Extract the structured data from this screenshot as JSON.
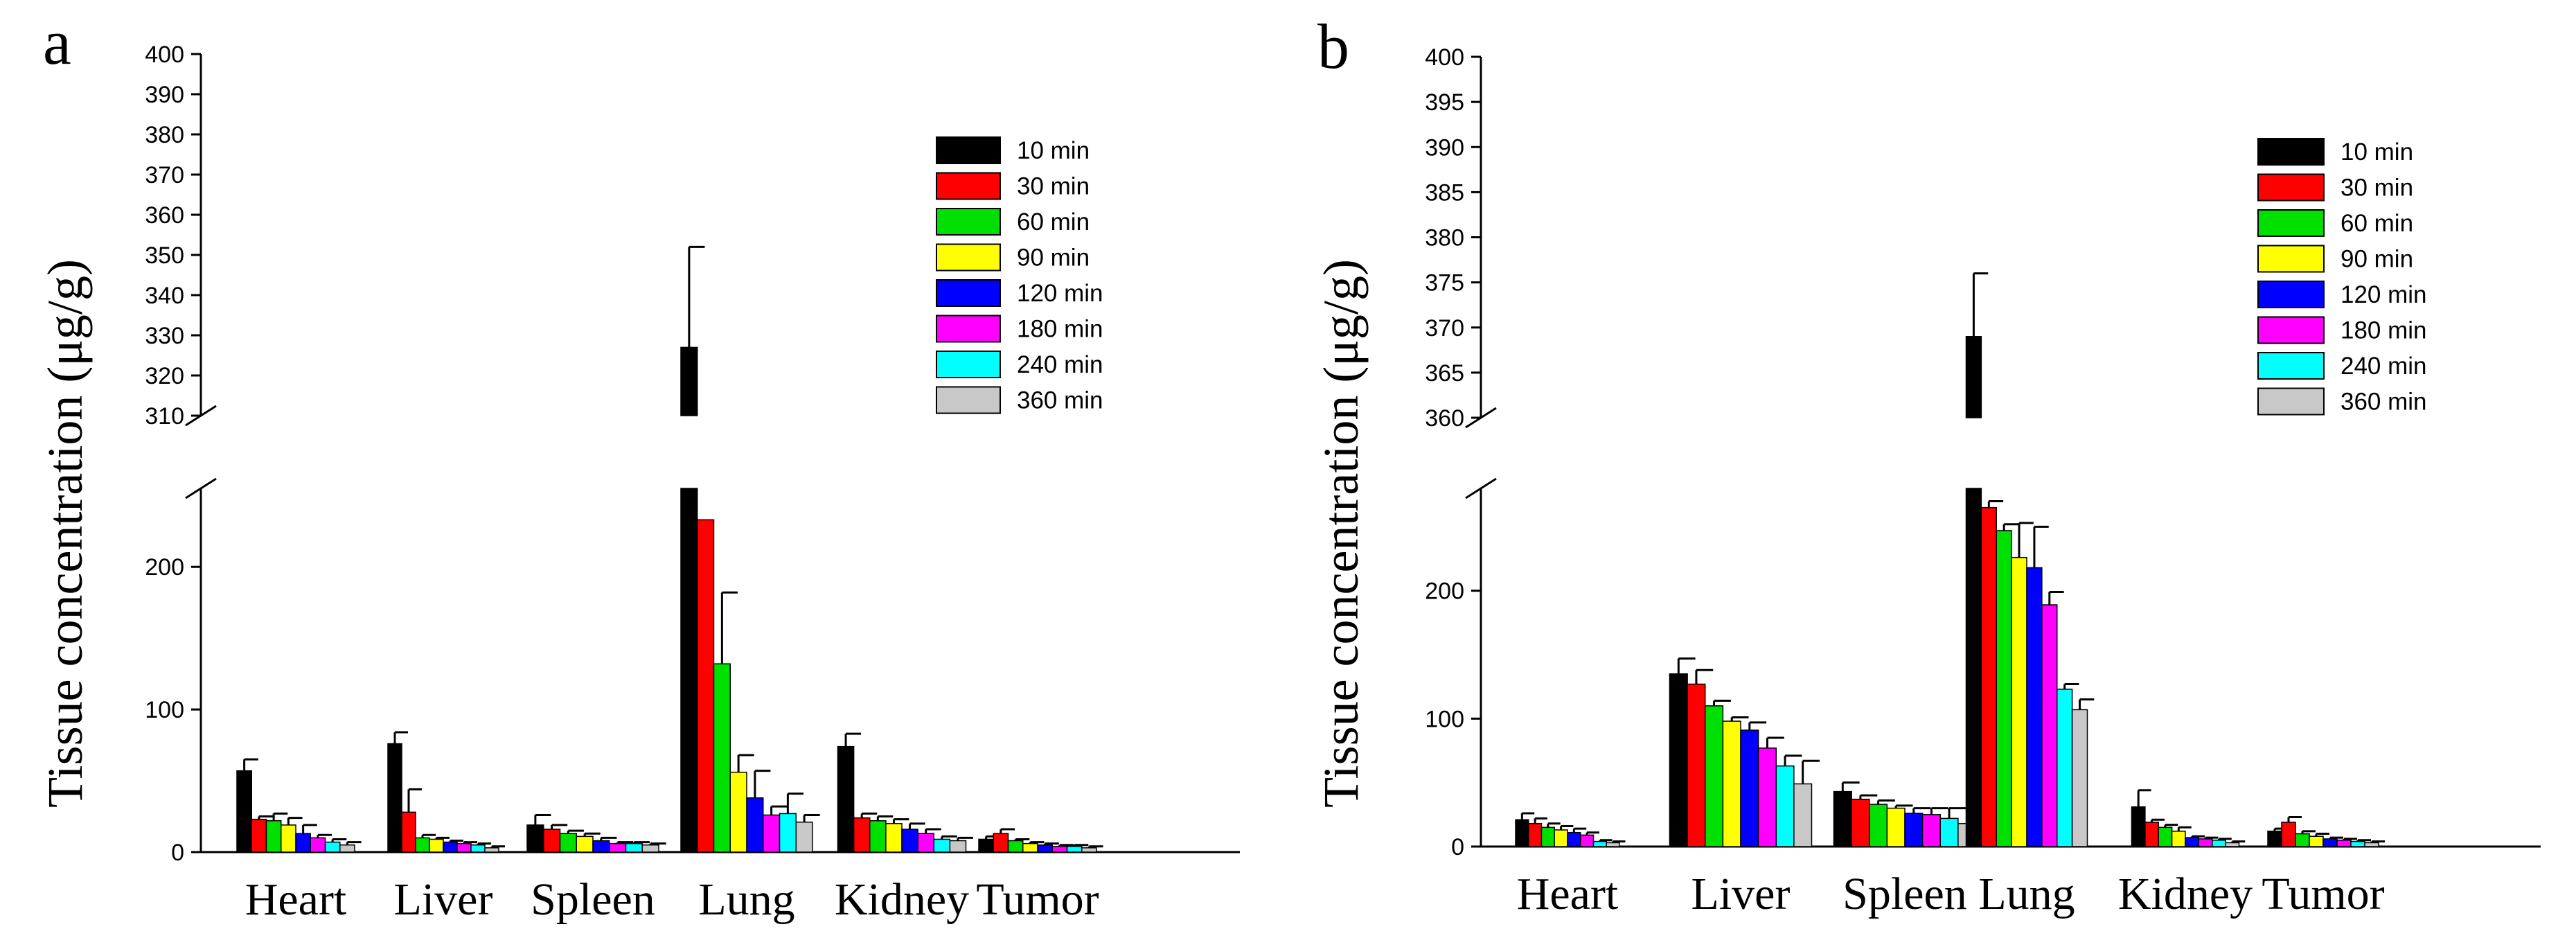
{
  "chart_data": [
    {
      "type": "bar",
      "panel_label": "a",
      "ylabel": "Tissue concentration (μg/g)",
      "xlabel": "",
      "categories": [
        "Heart",
        "Liver",
        "Spleen",
        "Lung",
        "Kidney",
        "Tumor"
      ],
      "y_axis_break": {
        "lower_range": [
          0,
          255
        ],
        "upper_range": [
          310,
          400
        ]
      },
      "lower_ticks": [
        0,
        100,
        200
      ],
      "upper_ticks": [
        310,
        320,
        330,
        340,
        350,
        360,
        370,
        380,
        390,
        400
      ],
      "legend_position": "top-right",
      "series": [
        {
          "name": "10 min",
          "color": "#000000",
          "values": [
            57,
            76,
            19,
            327,
            74,
            9
          ],
          "errors": [
            8,
            8,
            7,
            25,
            9,
            2
          ]
        },
        {
          "name": "30 min",
          "color": "#ff0000",
          "values": [
            23,
            28,
            16,
            233,
            24,
            13
          ],
          "errors": [
            2,
            16,
            3,
            0,
            3,
            3
          ]
        },
        {
          "name": "60 min",
          "color": "#00e000",
          "values": [
            22,
            10,
            13,
            132,
            22,
            8
          ],
          "errors": [
            5,
            2,
            2,
            50,
            3,
            1
          ]
        },
        {
          "name": "90 min",
          "color": "#ffff00",
          "values": [
            19,
            9,
            11,
            56,
            20,
            6
          ],
          "errors": [
            5,
            1,
            2,
            12,
            3,
            1
          ]
        },
        {
          "name": "120 min",
          "color": "#0000ff",
          "values": [
            13,
            7,
            8,
            38,
            16,
            5
          ],
          "errors": [
            6,
            1,
            2,
            19,
            4,
            1
          ]
        },
        {
          "name": "180 min",
          "color": "#ff00ff",
          "values": [
            10,
            6,
            6,
            26,
            13,
            4
          ],
          "errors": [
            2,
            1,
            1,
            6,
            3,
            1
          ]
        },
        {
          "name": "240 min",
          "color": "#00ffff",
          "values": [
            7,
            5,
            6,
            27,
            9,
            4
          ],
          "errors": [
            2,
            1,
            1,
            14,
            2,
            1
          ]
        },
        {
          "name": "360 min",
          "color": "#c8c8c8",
          "values": [
            5,
            3,
            5,
            21,
            8,
            3
          ],
          "errors": [
            2,
            1,
            1,
            5,
            2,
            1
          ]
        }
      ]
    },
    {
      "type": "bar",
      "panel_label": "b",
      "ylabel": "Tissue concentration (μg/g)",
      "xlabel": "",
      "categories": [
        "Heart",
        "Liver",
        "Spleen",
        "Lung",
        "Kidney",
        "Tumor"
      ],
      "y_axis_break": {
        "lower_range": [
          0,
          280
        ],
        "upper_range": [
          360,
          400
        ]
      },
      "lower_ticks": [
        0,
        100,
        200
      ],
      "upper_ticks": [
        360,
        365,
        370,
        375,
        380,
        385,
        390,
        395,
        400
      ],
      "legend_position": "top-right",
      "series": [
        {
          "name": "10 min",
          "color": "#000000",
          "values": [
            21,
            135,
            43,
            369,
            31,
            12
          ],
          "errors": [
            5,
            12,
            7,
            7,
            13,
            2
          ]
        },
        {
          "name": "30 min",
          "color": "#ff0000",
          "values": [
            18,
            127,
            37,
            265,
            19,
            19
          ],
          "errors": [
            4,
            11,
            3,
            5,
            2,
            4
          ]
        },
        {
          "name": "60 min",
          "color": "#00e000",
          "values": [
            15,
            110,
            33,
            247,
            15,
            10
          ],
          "errors": [
            3,
            4,
            3,
            5,
            2,
            2
          ]
        },
        {
          "name": "90 min",
          "color": "#ffff00",
          "values": [
            13,
            98,
            30,
            226,
            12,
            8
          ],
          "errors": [
            3,
            3,
            2,
            27,
            3,
            2
          ]
        },
        {
          "name": "120 min",
          "color": "#0000ff",
          "values": [
            11,
            91,
            26,
            218,
            7,
            6
          ],
          "errors": [
            3,
            6,
            4,
            32,
            1,
            1
          ]
        },
        {
          "name": "180 min",
          "color": "#ff00ff",
          "values": [
            9,
            77,
            25,
            189,
            6,
            5
          ],
          "errors": [
            2,
            8,
            5,
            10,
            1,
            1
          ]
        },
        {
          "name": "240 min",
          "color": "#00ffff",
          "values": [
            4,
            63,
            22,
            123,
            5,
            4
          ],
          "errors": [
            1,
            8,
            8,
            4,
            1,
            1
          ]
        },
        {
          "name": "360 min",
          "color": "#c8c8c8",
          "values": [
            3,
            49,
            18,
            107,
            3,
            3
          ],
          "errors": [
            1,
            18,
            13,
            8,
            1,
            1
          ]
        }
      ]
    }
  ]
}
